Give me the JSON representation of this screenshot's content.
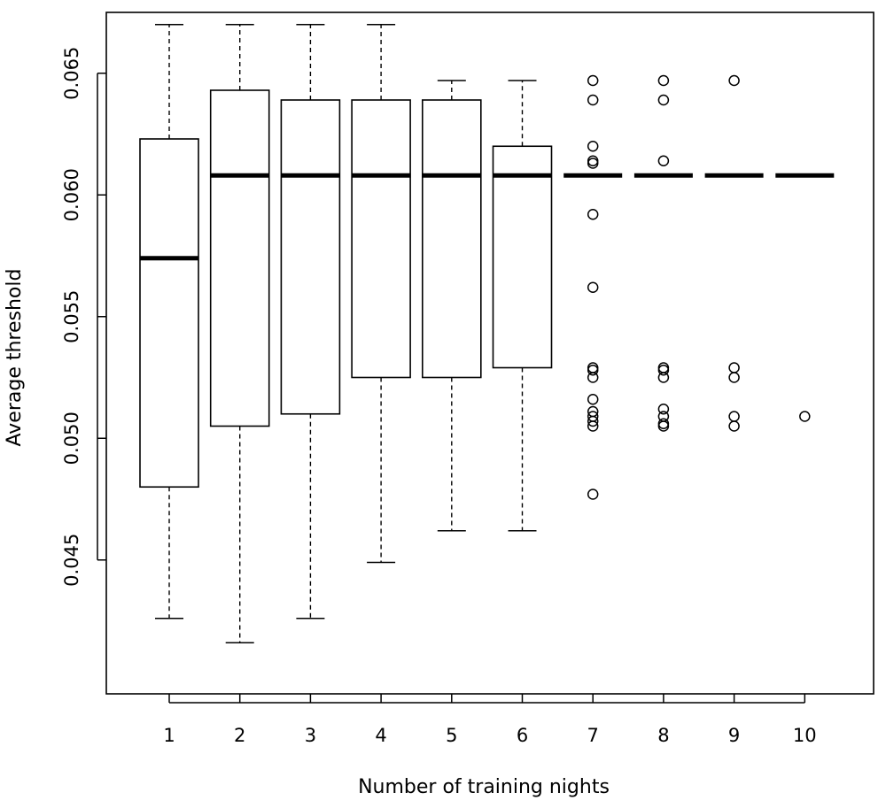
{
  "chart_data": {
    "type": "boxplot",
    "xlabel": "Number of training nights",
    "ylabel": "Average threshold",
    "categories": [
      "1",
      "2",
      "3",
      "4",
      "5",
      "6",
      "7",
      "8",
      "9",
      "10"
    ],
    "yticks": [
      "0.045",
      "0.050",
      "0.055",
      "0.060",
      "0.065"
    ],
    "ylim": [
      0.0395,
      0.0675
    ],
    "grid": false,
    "boxes": [
      {
        "min": 0.0426,
        "q1": 0.048,
        "median": 0.0574,
        "q3": 0.0623,
        "max": 0.067,
        "outliers": []
      },
      {
        "min": 0.0416,
        "q1": 0.0505,
        "median": 0.0608,
        "q3": 0.0643,
        "max": 0.067,
        "outliers": []
      },
      {
        "min": 0.0426,
        "q1": 0.051,
        "median": 0.0608,
        "q3": 0.0639,
        "max": 0.067,
        "outliers": []
      },
      {
        "min": 0.0449,
        "q1": 0.0525,
        "median": 0.0608,
        "q3": 0.0639,
        "max": 0.067,
        "outliers": []
      },
      {
        "min": 0.0462,
        "q1": 0.0525,
        "median": 0.0608,
        "q3": 0.0639,
        "max": 0.0647,
        "outliers": []
      },
      {
        "min": 0.0462,
        "q1": 0.0529,
        "median": 0.0608,
        "q3": 0.062,
        "max": 0.0647,
        "outliers": []
      },
      {
        "min": 0.0608,
        "q1": 0.0608,
        "median": 0.0608,
        "q3": 0.0608,
        "max": 0.0608,
        "outliers": [
          0.0647,
          0.0639,
          0.062,
          0.0614,
          0.0613,
          0.0592,
          0.0562,
          0.0529,
          0.0528,
          0.0525,
          0.0516,
          0.0511,
          0.0509,
          0.0507,
          0.0505,
          0.0477
        ]
      },
      {
        "min": 0.0608,
        "q1": 0.0608,
        "median": 0.0608,
        "q3": 0.0608,
        "max": 0.0608,
        "outliers": [
          0.0647,
          0.0639,
          0.0614,
          0.0529,
          0.0528,
          0.0525,
          0.0512,
          0.0509,
          0.0506,
          0.0505
        ]
      },
      {
        "min": 0.0608,
        "q1": 0.0608,
        "median": 0.0608,
        "q3": 0.0608,
        "max": 0.0608,
        "outliers": [
          0.0647,
          0.0529,
          0.0525,
          0.0509,
          0.0505
        ]
      },
      {
        "min": 0.0608,
        "q1": 0.0608,
        "median": 0.0608,
        "q3": 0.0608,
        "max": 0.0608,
        "outliers": [
          0.0509
        ]
      }
    ]
  }
}
